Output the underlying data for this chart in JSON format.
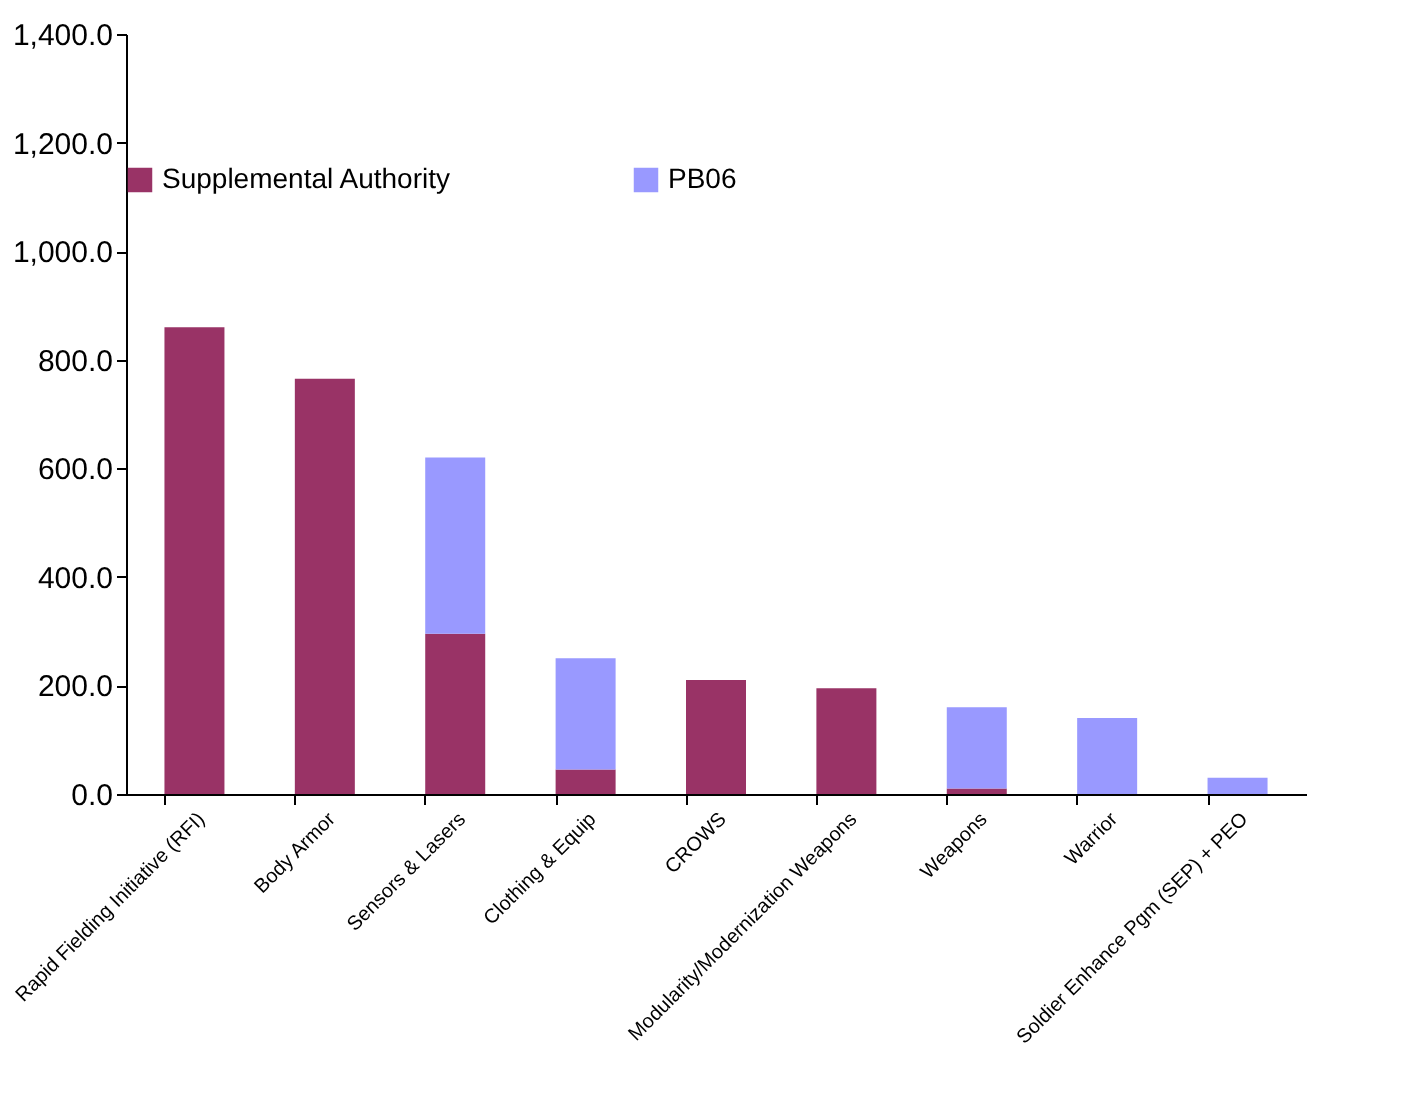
{
  "chart_data": {
    "type": "bar",
    "stacked": true,
    "categories": [
      "Rapid Fielding Initiative (RFI)",
      "Body Armor",
      "Sensors & Lasers",
      "Clothing & Equip",
      "CROWS",
      "Modularity/Modernization Weapons",
      "Weapons",
      "Warrior",
      "Soldier Enhance Pgm (SEP) + PEO"
    ],
    "series": [
      {
        "name": "Supplemental Authority",
        "color": "#993366",
        "values": [
          860,
          765,
          295,
          45,
          210,
          195,
          10,
          0,
          0
        ]
      },
      {
        "name": "PB06",
        "color": "#9999ff",
        "values": [
          0,
          0,
          325,
          205,
          0,
          0,
          150,
          140,
          30
        ]
      }
    ],
    "ylim": [
      0,
      1400
    ],
    "yticks": [
      {
        "value": 0,
        "label": "0.0"
      },
      {
        "value": 200,
        "label": "200.0"
      },
      {
        "value": 400,
        "label": "400.0"
      },
      {
        "value": 600,
        "label": "600.0"
      },
      {
        "value": 800,
        "label": "800.0"
      },
      {
        "value": 1000,
        "label": "1,000.0"
      },
      {
        "value": 1200,
        "label": "1,200.0"
      },
      {
        "value": 1400,
        "label": "1,400.0"
      }
    ],
    "grid": false,
    "legend": "top"
  }
}
